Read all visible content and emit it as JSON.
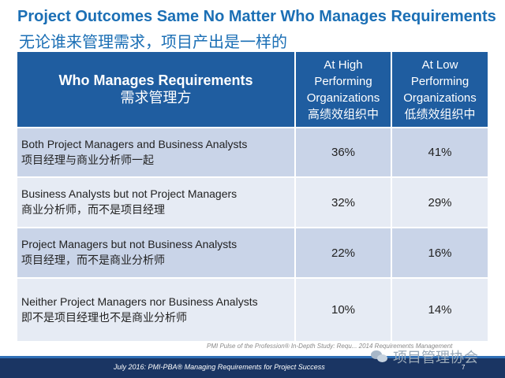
{
  "slide": {
    "title_en": "Project Outcomes Same No Matter Who Manages Requirements",
    "title_zh": "无论谁来管理需求，项目产出是一样的"
  },
  "table": {
    "headers": {
      "main_en": "Who Manages Requirements",
      "main_zh": "需求管理方",
      "high_en": "At High Performing Organizations",
      "high_zh": "高绩效组织中",
      "low_en": "At Low Performing Organizations",
      "low_zh": "低绩效组织中"
    },
    "rows": [
      {
        "label_en": "Both Project Managers and Business Analysts",
        "label_zh": "项目经理与商业分析师一起",
        "high": "36%",
        "low": "41%"
      },
      {
        "label_en": "Business Analysts but not Project Managers",
        "label_zh": "商业分析师，而不是项目经理",
        "high": "32%",
        "low": "29%"
      },
      {
        "label_en": "Project Managers but not Business Analysts",
        "label_zh": "项目经理，而不是商业分析师",
        "high": "22%",
        "low": "16%"
      },
      {
        "label_en": "Neither Project Managers nor Business Analysts",
        "label_zh": "即不是项目经理也不是商业分析师",
        "high": "10%",
        "low": "14%"
      }
    ]
  },
  "source_text": "PMI Pulse of the Profession® In-Depth Study: Requ... 2014 Requirements Management",
  "footer": {
    "text": "July 2016: PMI-PBA® Managing Requirements for Project Success",
    "page": "7"
  },
  "watermark": {
    "text": "项目管理协会",
    "icon": "chat-bubbles-icon"
  },
  "colors": {
    "title": "#1b6fb5",
    "header_bg": "#1f5da0",
    "row_dark": "#c9d4e8",
    "row_light": "#e6ebf4",
    "footer_bg": "#1a3563"
  }
}
